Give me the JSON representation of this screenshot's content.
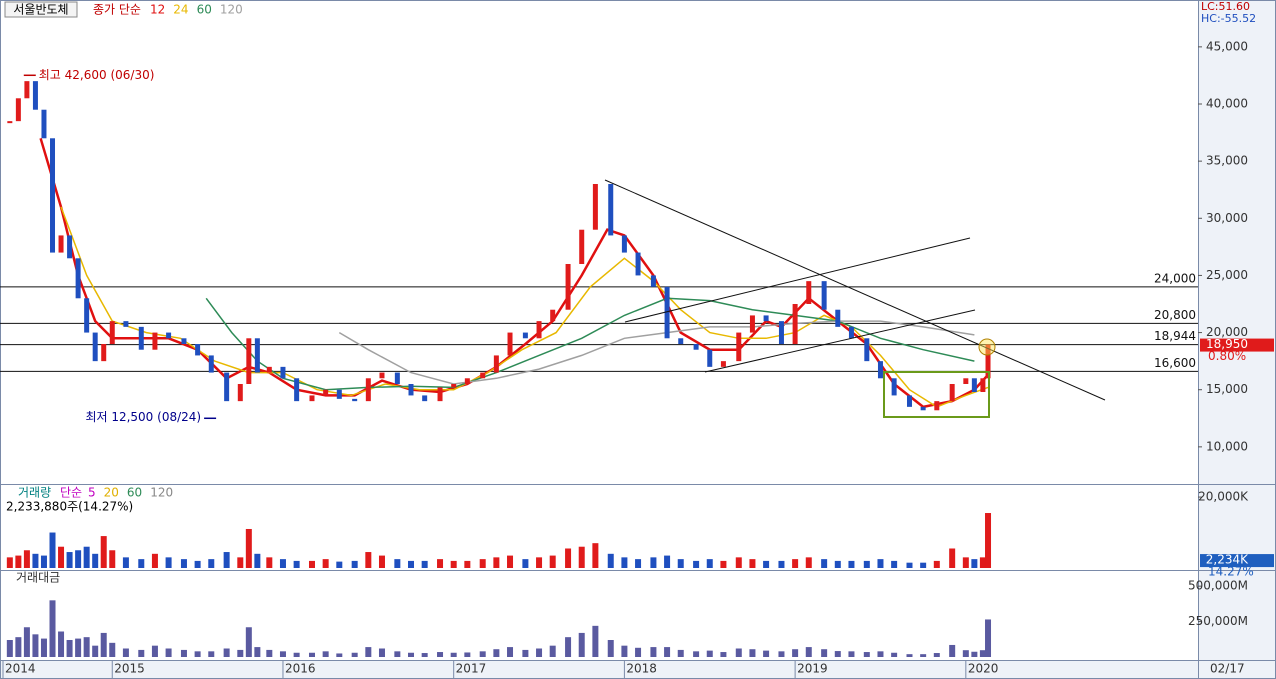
{
  "chart_data": [
    {
      "type": "stock",
      "title": "서울반도체",
      "indicator_label": "종가 단순",
      "lc_label": "LC:51.60",
      "hc_label": "HC:-55.52",
      "up_color": "#e01b1b",
      "down_color": "#1f4fbf",
      "xlim": [
        2014.36,
        2021.36
      ],
      "ylim": [
        6750,
        49100
      ],
      "yticks": [
        {
          "value": 10000,
          "label": "10,000"
        },
        {
          "value": 15000,
          "label": "15,000"
        },
        {
          "value": 20000,
          "label": "20,000"
        },
        {
          "value": 25000,
          "label": "25,000"
        },
        {
          "value": 30000,
          "label": "30,000"
        },
        {
          "value": 35000,
          "label": "35,000"
        },
        {
          "value": 40000,
          "label": "40,000"
        },
        {
          "value": 45000,
          "label": "45,000"
        }
      ],
      "x": [
        2014.4,
        2014.45,
        2014.5,
        2014.55,
        2014.6,
        2014.65,
        2014.7,
        2014.75,
        2014.8,
        2014.85,
        2014.9,
        2014.95,
        2015.0,
        2015.08,
        2015.17,
        2015.25,
        2015.33,
        2015.42,
        2015.5,
        2015.58,
        2015.67,
        2015.75,
        2015.8,
        2015.85,
        2015.92,
        2016.0,
        2016.08,
        2016.17,
        2016.25,
        2016.33,
        2016.42,
        2016.5,
        2016.58,
        2016.67,
        2016.75,
        2016.83,
        2016.92,
        2017.0,
        2017.08,
        2017.17,
        2017.25,
        2017.33,
        2017.42,
        2017.5,
        2017.58,
        2017.67,
        2017.75,
        2017.83,
        2017.92,
        2018.0,
        2018.08,
        2018.17,
        2018.25,
        2018.33,
        2018.42,
        2018.5,
        2018.58,
        2018.67,
        2018.75,
        2018.83,
        2018.92,
        2019.0,
        2019.08,
        2019.17,
        2019.25,
        2019.33,
        2019.42,
        2019.5,
        2019.58,
        2019.67,
        2019.75,
        2019.83,
        2019.92,
        2020.0,
        2020.05,
        2020.1,
        2020.13
      ],
      "values": [
        38500,
        40500,
        42000,
        39500,
        37000,
        27000,
        28500,
        26500,
        23000,
        20000,
        17500,
        19000,
        21000,
        20500,
        18500,
        20000,
        19500,
        19000,
        18000,
        16500,
        14000,
        15500,
        19500,
        16500,
        17000,
        16000,
        14000,
        14500,
        15000,
        14200,
        14000,
        16000,
        16500,
        15500,
        14500,
        14000,
        15200,
        15500,
        16000,
        16500,
        18000,
        20000,
        19500,
        21000,
        22000,
        26000,
        29000,
        33000,
        28500,
        27000,
        25000,
        24000,
        19500,
        19000,
        18500,
        17000,
        17500,
        20000,
        21500,
        21000,
        19000,
        22500,
        24500,
        22000,
        20500,
        19500,
        17500,
        16000,
        14500,
        13500,
        13200,
        14000,
        15500,
        16000,
        14800,
        16000,
        18950
      ],
      "moving_averages": [
        {
          "name": "12",
          "color": "#e01010",
          "x": [
            2014.58,
            2014.7,
            2014.8,
            2014.9,
            2015.0,
            2015.17,
            2015.33,
            2015.5,
            2015.67,
            2015.8,
            2015.92,
            2016.08,
            2016.25,
            2016.42,
            2016.58,
            2016.75,
            2016.92,
            2017.08,
            2017.25,
            2017.42,
            2017.58,
            2017.75,
            2017.9,
            2018.0,
            2018.17,
            2018.33,
            2018.5,
            2018.67,
            2018.83,
            2018.92,
            2019.08,
            2019.25,
            2019.42,
            2019.58,
            2019.75,
            2019.92,
            2020.05,
            2020.13
          ],
          "values": [
            37000,
            31000,
            25000,
            21000,
            19500,
            19500,
            19500,
            18500,
            16000,
            17000,
            16500,
            15000,
            14500,
            14500,
            15800,
            15000,
            14800,
            15500,
            17000,
            19000,
            21000,
            25000,
            29000,
            28500,
            25000,
            20000,
            18500,
            18500,
            21000,
            20500,
            23000,
            21000,
            19000,
            15500,
            13500,
            14000,
            15000,
            16300
          ]
        },
        {
          "name": "24",
          "color": "#e8b800",
          "x": [
            2014.7,
            2014.85,
            2015.0,
            2015.2,
            2015.4,
            2015.6,
            2015.8,
            2016.0,
            2016.2,
            2016.4,
            2016.6,
            2016.8,
            2017.0,
            2017.2,
            2017.4,
            2017.6,
            2017.8,
            2018.0,
            2018.17,
            2018.33,
            2018.5,
            2018.67,
            2018.83,
            2019.0,
            2019.17,
            2019.33,
            2019.5,
            2019.67,
            2019.83,
            2020.0,
            2020.13
          ],
          "values": [
            31000,
            25000,
            21000,
            20000,
            19500,
            17500,
            16500,
            16500,
            15000,
            14500,
            15500,
            15000,
            15000,
            16500,
            18500,
            20000,
            24000,
            26500,
            24500,
            22000,
            20000,
            19500,
            19500,
            20000,
            21500,
            20500,
            18000,
            15000,
            13500,
            14500,
            15200
          ]
        },
        {
          "name": "60",
          "color": "#2e8b57",
          "x": [
            2015.55,
            2015.7,
            2015.85,
            2016.0,
            2016.25,
            2016.5,
            2016.75,
            2017.0,
            2017.25,
            2017.5,
            2017.75,
            2018.0,
            2018.25,
            2018.5,
            2018.75,
            2019.0,
            2019.25,
            2019.5,
            2019.75,
            2020.05
          ],
          "values": [
            23000,
            20000,
            17500,
            16000,
            15000,
            15200,
            15300,
            15200,
            16500,
            18000,
            19500,
            21500,
            23000,
            22800,
            22000,
            21500,
            21000,
            19500,
            18500,
            17500
          ]
        },
        {
          "name": "120",
          "color": "#a0a0a0",
          "x": [
            2016.33,
            2016.5,
            2016.75,
            2017.0,
            2017.25,
            2017.5,
            2017.75,
            2018.0,
            2018.25,
            2018.5,
            2018.75,
            2019.0,
            2019.25,
            2019.5,
            2019.75,
            2020.05
          ],
          "values": [
            20000,
            18500,
            16500,
            15500,
            16000,
            16800,
            18000,
            19500,
            20000,
            20500,
            20500,
            20800,
            21000,
            21000,
            20500,
            19800
          ]
        }
      ],
      "levels": [
        {
          "value": 24000,
          "label": "24,000"
        },
        {
          "value": 20800,
          "label": "20,800"
        },
        {
          "value": 18944,
          "label": "18,944"
        },
        {
          "value": 16600,
          "label": "16,600"
        }
      ],
      "last": {
        "value": 18950,
        "label": "18,950",
        "change": "0.80%"
      },
      "annotations": [
        {
          "text": "최고 42,600 (06/30)",
          "x": 2014.47,
          "value": 42600,
          "color": "#c00000"
        },
        {
          "text": "최저 12,500 (08/24)",
          "x": 2015.62,
          "value": 12500,
          "color": "#00008b"
        }
      ]
    },
    {
      "type": "bar",
      "title": "거래량",
      "indicator_label": "단순",
      "summary": "2,233,880주(14.27%)",
      "ma_labels": [
        {
          "name": "5",
          "color": "#c000c0"
        },
        {
          "name": "20",
          "color": "#e0b000"
        },
        {
          "name": "60",
          "color": "#2e8b57"
        },
        {
          "name": "120",
          "color": "#888888"
        }
      ],
      "xlim": [
        2014.36,
        2021.36
      ],
      "ylim": [
        0,
        23400
      ],
      "yticks": [
        {
          "value": 20000,
          "label": "20,000K"
        }
      ],
      "last": {
        "value": 2234,
        "label": "2,234K",
        "change": "14.27%"
      },
      "x": [
        2014.4,
        2014.45,
        2014.5,
        2014.55,
        2014.6,
        2014.65,
        2014.7,
        2014.75,
        2014.8,
        2014.85,
        2014.9,
        2014.95,
        2015.0,
        2015.08,
        2015.17,
        2015.25,
        2015.33,
        2015.42,
        2015.5,
        2015.58,
        2015.67,
        2015.75,
        2015.8,
        2015.85,
        2015.92,
        2016.0,
        2016.08,
        2016.17,
        2016.25,
        2016.33,
        2016.42,
        2016.5,
        2016.58,
        2016.67,
        2016.75,
        2016.83,
        2016.92,
        2017.0,
        2017.08,
        2017.17,
        2017.25,
        2017.33,
        2017.42,
        2017.5,
        2017.58,
        2017.67,
        2017.75,
        2017.83,
        2017.92,
        2018.0,
        2018.08,
        2018.17,
        2018.25,
        2018.33,
        2018.42,
        2018.5,
        2018.58,
        2018.67,
        2018.75,
        2018.83,
        2018.92,
        2019.0,
        2019.08,
        2019.17,
        2019.25,
        2019.33,
        2019.42,
        2019.5,
        2019.58,
        2019.67,
        2019.75,
        2019.83,
        2019.92,
        2020.0,
        2020.05,
        2020.1,
        2020.13
      ],
      "values": [
        3000,
        3500,
        5000,
        4000,
        3500,
        10000,
        6000,
        4500,
        5000,
        6000,
        4000,
        9000,
        5000,
        3000,
        2500,
        4000,
        3000,
        2500,
        2000,
        2500,
        4500,
        3000,
        11000,
        4000,
        3000,
        2500,
        2000,
        2000,
        2500,
        1800,
        2000,
        4500,
        3500,
        2500,
        2000,
        2000,
        2500,
        2000,
        2000,
        2500,
        3000,
        3500,
        2500,
        3000,
        3500,
        5500,
        6000,
        7000,
        4000,
        3000,
        2500,
        3000,
        3500,
        2500,
        2000,
        2500,
        2000,
        3000,
        2500,
        2000,
        2000,
        2500,
        3000,
        2500,
        2000,
        2000,
        2000,
        2500,
        2000,
        1500,
        1500,
        2000,
        5500,
        3000,
        2500,
        3000,
        15500
      ]
    },
    {
      "type": "bar",
      "title": "거래대금",
      "color": "#5a5aa0",
      "cursor_date": "02/17",
      "xlim": [
        2014.36,
        2021.36
      ],
      "ylim": [
        0,
        600000
      ],
      "yticks": [
        {
          "value": 250000,
          "label": "250,000M"
        },
        {
          "value": 500000,
          "label": "500,000M"
        }
      ],
      "xticks": [
        {
          "value": 2014.36,
          "label": "2014"
        },
        2015,
        2016,
        2017,
        2018,
        2019,
        2020
      ],
      "x": [
        2014.4,
        2014.45,
        2014.5,
        2014.55,
        2014.6,
        2014.65,
        2014.7,
        2014.75,
        2014.8,
        2014.85,
        2014.9,
        2014.95,
        2015.0,
        2015.08,
        2015.17,
        2015.25,
        2015.33,
        2015.42,
        2015.5,
        2015.58,
        2015.67,
        2015.75,
        2015.8,
        2015.85,
        2015.92,
        2016.0,
        2016.08,
        2016.17,
        2016.25,
        2016.33,
        2016.42,
        2016.5,
        2016.58,
        2016.67,
        2016.75,
        2016.83,
        2016.92,
        2017.0,
        2017.08,
        2017.17,
        2017.25,
        2017.33,
        2017.42,
        2017.5,
        2017.58,
        2017.67,
        2017.75,
        2017.83,
        2017.92,
        2018.0,
        2018.08,
        2018.17,
        2018.25,
        2018.33,
        2018.42,
        2018.5,
        2018.58,
        2018.67,
        2018.75,
        2018.83,
        2018.92,
        2019.0,
        2019.08,
        2019.17,
        2019.25,
        2019.33,
        2019.42,
        2019.5,
        2019.58,
        2019.67,
        2019.75,
        2019.83,
        2019.92,
        2020.0,
        2020.05,
        2020.1,
        2020.13
      ],
      "values": [
        120000,
        140000,
        210000,
        160000,
        130000,
        400000,
        180000,
        120000,
        130000,
        140000,
        80000,
        170000,
        100000,
        60000,
        50000,
        80000,
        60000,
        50000,
        40000,
        40000,
        60000,
        50000,
        210000,
        70000,
        50000,
        40000,
        30000,
        30000,
        40000,
        25000,
        30000,
        70000,
        60000,
        40000,
        30000,
        28000,
        35000,
        30000,
        32000,
        40000,
        55000,
        70000,
        50000,
        60000,
        80000,
        140000,
        170000,
        220000,
        120000,
        80000,
        65000,
        70000,
        70000,
        50000,
        40000,
        45000,
        35000,
        60000,
        55000,
        45000,
        40000,
        55000,
        70000,
        55000,
        42000,
        40000,
        35000,
        40000,
        30000,
        20000,
        20000,
        28000,
        85000,
        48000,
        37000,
        48000,
        265000
      ]
    }
  ]
}
